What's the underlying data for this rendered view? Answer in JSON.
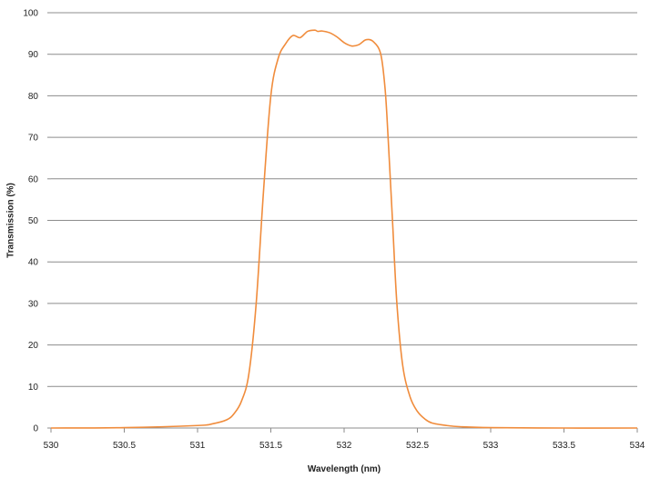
{
  "chart_data": {
    "type": "line",
    "title": "",
    "xlabel": "Wavelength (nm)",
    "ylabel": "Transmission (%)",
    "xlim": [
      530,
      534
    ],
    "ylim": [
      0,
      100
    ],
    "xticks": [
      530,
      530.5,
      531,
      531.5,
      532,
      532.5,
      533,
      533.5,
      534
    ],
    "xtick_labels": [
      "530",
      "530.5",
      "531",
      "531.5",
      "532",
      "532.5",
      "533",
      "533.5",
      "534"
    ],
    "yticks": [
      0,
      10,
      20,
      30,
      40,
      50,
      60,
      70,
      80,
      90,
      100
    ],
    "ytick_labels": [
      "0",
      "10",
      "20",
      "30",
      "40",
      "50",
      "60",
      "70",
      "80",
      "90",
      "100"
    ],
    "grid": "horizontal",
    "legend": "none",
    "colors": {
      "line": "#f08c3c",
      "grid": "#8c8c8c",
      "axis": "#8c8c8c"
    },
    "series": [
      {
        "x": [
          530.0,
          530.5,
          531.0,
          531.1,
          531.2,
          531.25,
          531.3,
          531.35,
          531.4,
          531.45,
          531.5,
          531.55,
          531.6,
          531.65,
          531.7,
          531.75,
          531.8,
          531.82,
          531.85,
          531.9,
          531.95,
          532.0,
          532.05,
          532.1,
          532.15,
          532.2,
          532.25,
          532.28,
          532.3,
          532.33,
          532.36,
          532.4,
          532.45,
          532.5,
          532.55,
          532.6,
          532.7,
          532.8,
          533.0,
          533.5,
          534.0
        ],
        "y": [
          0.0,
          0.1,
          0.6,
          1.0,
          2.0,
          3.5,
          6.5,
          13.0,
          30.0,
          57.0,
          80.0,
          89.0,
          92.5,
          94.5,
          94.0,
          95.5,
          95.8,
          95.5,
          95.6,
          95.2,
          94.2,
          92.8,
          92.0,
          92.3,
          93.5,
          93.0,
          90.0,
          81.5,
          70.0,
          50.0,
          30.0,
          15.0,
          7.5,
          4.0,
          2.2,
          1.2,
          0.6,
          0.3,
          0.1,
          0.0,
          0.0
        ]
      }
    ]
  }
}
